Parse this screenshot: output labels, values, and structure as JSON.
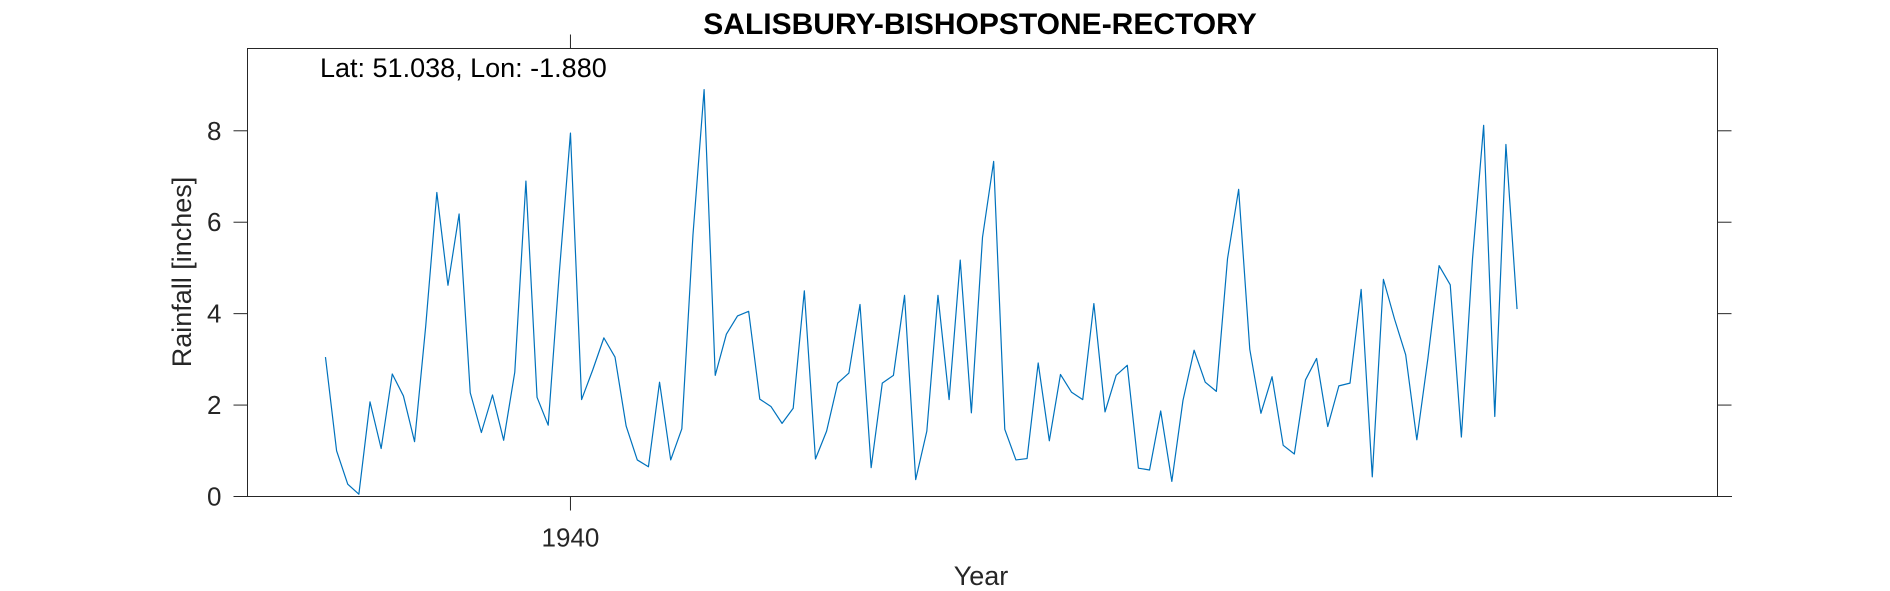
{
  "chart_data": {
    "type": "line",
    "title": "SALISBURY-BISHOPSTONE-RECTORY",
    "annotation": "Lat: 51.038, Lon: -1.880",
    "xlabel": "Year",
    "ylabel": "Rainfall [inches]",
    "xlim": [
      1937.5833,
      1948.5833
    ],
    "ylim": [
      0,
      9.8
    ],
    "x_tick_values": [
      1940
    ],
    "x_tick_labels": [
      "1940"
    ],
    "y_tick_values": [
      0,
      2,
      4,
      6,
      8
    ],
    "y_tick_labels": [
      "0",
      "2",
      "4",
      "6",
      "8"
    ],
    "grid": false,
    "line_color": "#0072BD",
    "series": [
      {
        "name": "",
        "x_start": 1938.1667,
        "x_step_months": 1,
        "values": [
          3.05,
          1.0,
          0.27,
          0.05,
          2.07,
          1.05,
          2.68,
          2.2,
          1.2,
          3.72,
          6.65,
          4.62,
          6.18,
          2.27,
          1.4,
          2.22,
          1.23,
          2.72,
          6.9,
          2.17,
          1.56,
          4.9,
          7.95,
          2.12,
          2.77,
          3.47,
          3.05,
          1.54,
          0.8,
          0.65,
          2.5,
          0.8,
          1.48,
          5.72,
          8.9,
          2.65,
          3.55,
          3.95,
          4.05,
          2.13,
          1.97,
          1.6,
          1.93,
          4.5,
          0.82,
          1.43,
          2.48,
          2.7,
          4.2,
          0.63,
          2.48,
          2.65,
          4.4,
          0.37,
          1.43,
          4.4,
          2.12,
          5.17,
          1.83,
          5.67,
          7.33,
          1.47,
          0.8,
          0.83,
          2.92,
          1.22,
          2.67,
          2.28,
          2.12,
          4.22,
          1.85,
          2.65,
          2.87,
          0.62,
          0.58,
          1.87,
          0.33,
          2.1,
          3.2,
          2.5,
          2.3,
          5.2,
          6.72,
          3.22,
          1.82,
          2.62,
          1.12,
          0.93,
          2.55,
          3.02,
          1.53,
          2.42,
          2.48,
          4.53,
          0.43,
          4.75,
          3.88,
          3.1,
          1.24,
          3.03,
          5.05,
          4.63,
          1.3,
          5.2,
          8.12,
          1.75,
          7.7,
          4.1
        ]
      }
    ]
  }
}
